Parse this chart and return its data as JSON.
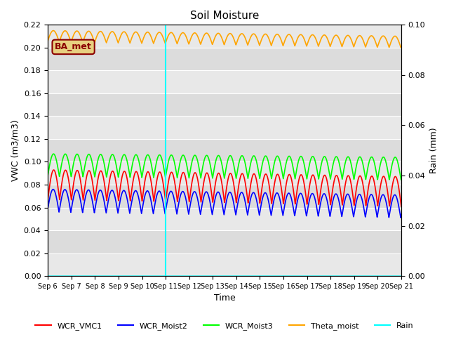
{
  "title": "Soil Moisture",
  "xlabel": "Time",
  "ylabel_left": "VWC (m3/m3)",
  "ylabel_right": "Rain (mm)",
  "ylim_left": [
    0.0,
    0.22
  ],
  "ylim_right": [
    0.0,
    0.1
  ],
  "vline_day": 5.0,
  "vline_color": "cyan",
  "bg_color": "#dcdcdc",
  "bg_band_color": "#e8e8e8",
  "legend_label": "BA_met",
  "legend_label_color": "#8B0000",
  "legend_label_bg": "#e8d080",
  "series": {
    "WCR_VMC1": {
      "color": "red",
      "base": 0.08,
      "amp": 0.013,
      "period": 0.5,
      "phase": 0.0,
      "trend": -0.006
    },
    "WCR_Moist2": {
      "color": "blue",
      "base": 0.066,
      "amp": 0.01,
      "period": 0.5,
      "phase": 0.15,
      "trend": -0.005
    },
    "WCR_Moist3": {
      "color": "lime",
      "base": 0.097,
      "amp": 0.01,
      "period": 0.5,
      "phase": 0.05,
      "trend": -0.003
    },
    "Theta_moist": {
      "color": "orange",
      "base": 0.21,
      "amp": 0.005,
      "period": 0.5,
      "phase": 0.1,
      "trend": -0.005
    },
    "Rain": {
      "color": "cyan",
      "base": 0.0,
      "amp": 0.0,
      "period": 1.0,
      "phase": 0.0,
      "trend": 0.0
    }
  },
  "xtick_labels": [
    "Sep 6",
    "Sep 7",
    "Sep 8",
    "Sep 9",
    "Sep 10",
    "Sep 11",
    "Sep 12",
    "Sep 13",
    "Sep 14",
    "Sep 15",
    "Sep 16",
    "Sep 17",
    "Sep 18",
    "Sep 19",
    "Sep 20",
    "Sep 21"
  ],
  "yticks_left": [
    0.0,
    0.02,
    0.04,
    0.06,
    0.08,
    0.1,
    0.12,
    0.14,
    0.16,
    0.18,
    0.2,
    0.22
  ],
  "yticks_right": [
    0.0,
    0.02,
    0.04,
    0.06,
    0.08,
    0.1
  ],
  "n_days": 15
}
